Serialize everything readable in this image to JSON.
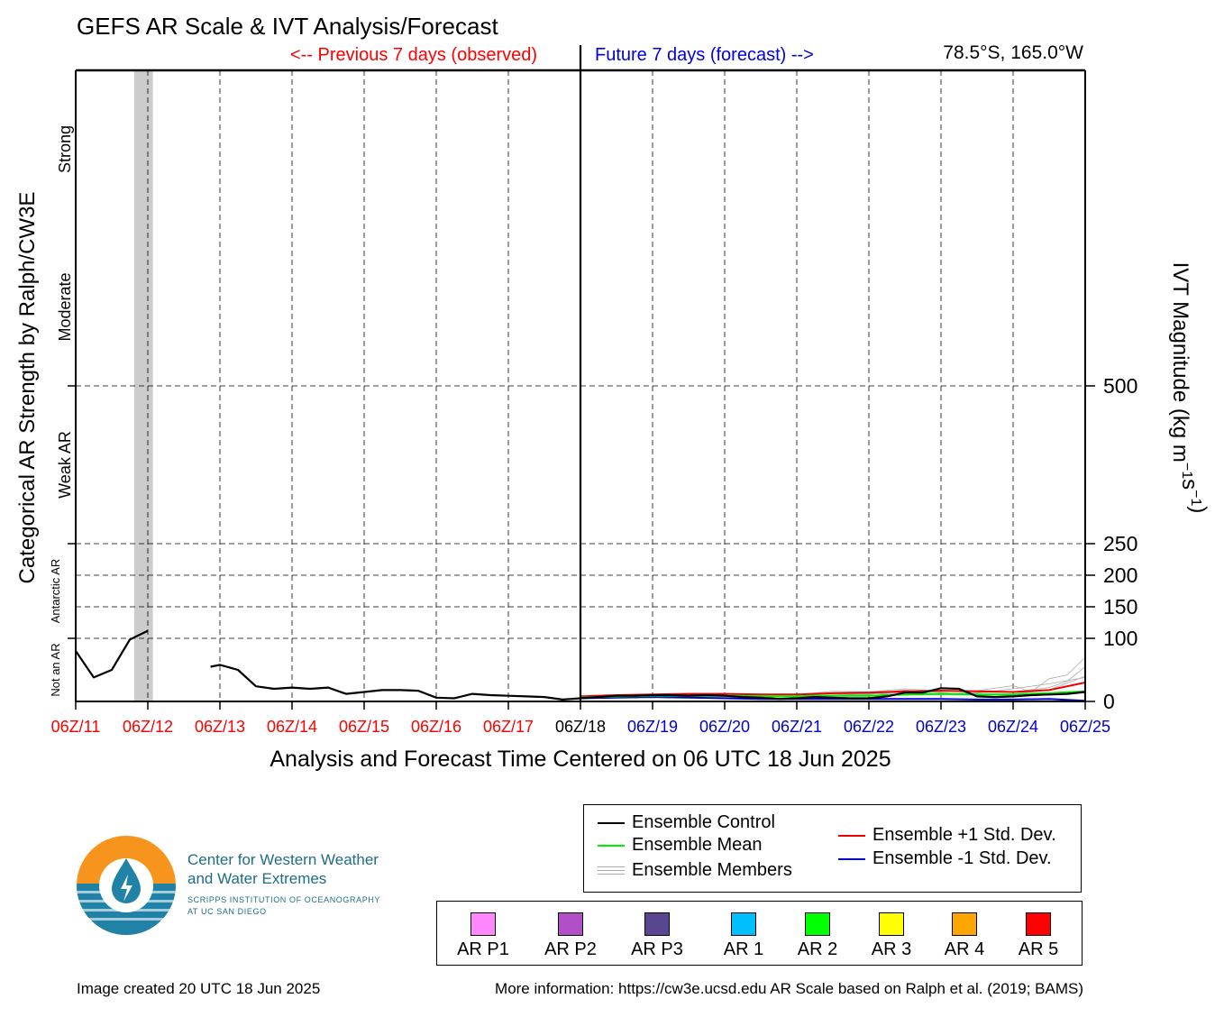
{
  "header": {
    "title": "GEFS AR Scale & IVT Analysis/Forecast",
    "previous_label": "<-- Previous 7 days (observed)",
    "future_label": "Future 7 days (forecast) -->",
    "coordinates": "78.5°S, 165.0°W"
  },
  "colors": {
    "observed": "#ff0000",
    "forecast": "#0000dd",
    "control": "#000000",
    "mean": "#00ee00",
    "plus_std": "#ee0000",
    "minus_std": "#0000cc",
    "members": "#aaaaaa",
    "missing_shade": "#cccccc"
  },
  "chart_data": {
    "type": "line",
    "title": "GEFS AR Scale & IVT Analysis/Forecast",
    "xlabel": "Analysis and Forecast Time Centered on 06 UTC 18 Jun 2025",
    "ylabel_left": "Categorical AR Strength by Ralph/CW3E",
    "ylabel_right_main": "IVT Magnitude (kg m",
    "ylabel_right_sup1": "−1",
    "ylabel_right_mid": "s",
    "ylabel_right_sup2": "−1",
    "ylabel_right_end": ")",
    "x_unit": "days since 06Z/11 Jun 2025",
    "xlim": [
      0,
      14
    ],
    "ylim": [
      0,
      1000
    ],
    "x_ticks": [
      {
        "label": "06Z/11",
        "period": "observed"
      },
      {
        "label": "06Z/12",
        "period": "observed"
      },
      {
        "label": "06Z/13",
        "period": "observed"
      },
      {
        "label": "06Z/14",
        "period": "observed"
      },
      {
        "label": "06Z/15",
        "period": "observed"
      },
      {
        "label": "06Z/16",
        "period": "observed"
      },
      {
        "label": "06Z/17",
        "period": "observed"
      },
      {
        "label": "06Z/18",
        "period": "current"
      },
      {
        "label": "06Z/19",
        "period": "forecast"
      },
      {
        "label": "06Z/20",
        "period": "forecast"
      },
      {
        "label": "06Z/21",
        "period": "forecast"
      },
      {
        "label": "06Z/22",
        "period": "forecast"
      },
      {
        "label": "06Z/23",
        "period": "forecast"
      },
      {
        "label": "06Z/24",
        "period": "forecast"
      },
      {
        "label": "06Z/25",
        "period": "forecast"
      }
    ],
    "y_ticks": [
      0,
      100,
      150,
      200,
      250,
      500
    ],
    "categories": [
      {
        "label": "Not an AR",
        "y_from": 0,
        "y_to": 100
      },
      {
        "label": "Antarctic AR",
        "y_from": 100,
        "y_to": 250
      },
      {
        "label": "Weak AR",
        "y_from": 250,
        "y_to": 500
      },
      {
        "label": "Moderate",
        "y_from": 500,
        "y_to": 750
      },
      {
        "label": "Strong",
        "y_from": 750,
        "y_to": 1000
      }
    ],
    "missing_data_period": [
      0.81,
      1.07
    ],
    "grid": true,
    "series": [
      {
        "name": "Ensemble Control",
        "role": "control",
        "segments": [
          [
            [
              0,
              80
            ],
            [
              0.25,
              38
            ],
            [
              0.5,
              50
            ],
            [
              0.75,
              98
            ],
            [
              1.0,
              112
            ]
          ],
          [
            [
              1.87,
              55
            ],
            [
              2.0,
              58
            ],
            [
              2.25,
              50
            ],
            [
              2.5,
              24
            ],
            [
              2.75,
              20
            ],
            [
              3.0,
              22
            ],
            [
              3.25,
              20
            ],
            [
              3.5,
              22
            ],
            [
              3.75,
              12
            ],
            [
              4.0,
              15
            ],
            [
              4.25,
              18
            ],
            [
              4.5,
              18
            ],
            [
              4.75,
              17
            ],
            [
              5.0,
              6
            ],
            [
              5.25,
              5
            ],
            [
              5.5,
              12
            ],
            [
              5.75,
              10
            ],
            [
              6.0,
              9
            ],
            [
              6.25,
              8
            ],
            [
              6.5,
              7
            ],
            [
              6.75,
              3
            ],
            [
              7.0,
              5
            ],
            [
              7.25,
              7
            ],
            [
              7.5,
              9
            ],
            [
              7.75,
              9
            ],
            [
              8.0,
              10
            ],
            [
              8.25,
              10
            ],
            [
              8.5,
              9
            ],
            [
              8.75,
              10
            ],
            [
              9.0,
              9
            ],
            [
              9.25,
              7
            ],
            [
              9.5,
              6
            ],
            [
              9.75,
              4
            ],
            [
              10.0,
              5
            ],
            [
              10.25,
              7
            ],
            [
              10.5,
              6
            ],
            [
              10.75,
              5
            ],
            [
              11.0,
              5
            ],
            [
              11.25,
              8
            ],
            [
              11.5,
              14
            ],
            [
              11.75,
              14
            ],
            [
              12.0,
              21
            ],
            [
              12.25,
              20
            ],
            [
              12.5,
              8
            ],
            [
              12.75,
              7
            ],
            [
              13.0,
              8
            ],
            [
              13.25,
              10
            ],
            [
              13.5,
              11
            ],
            [
              13.75,
              12
            ],
            [
              14.0,
              15
            ]
          ]
        ]
      },
      {
        "name": "Ensemble Mean",
        "role": "mean",
        "segments": [
          [
            [
              7.0,
              6
            ],
            [
              7.5,
              8
            ],
            [
              8.0,
              9
            ],
            [
              8.5,
              9
            ],
            [
              9.0,
              9
            ],
            [
              9.5,
              8
            ],
            [
              10.0,
              8
            ],
            [
              10.5,
              9
            ],
            [
              11.0,
              9
            ],
            [
              11.5,
              11
            ],
            [
              12.0,
              12
            ],
            [
              12.5,
              11
            ],
            [
              13.0,
              11
            ],
            [
              13.5,
              13
            ],
            [
              14.0,
              16
            ]
          ]
        ]
      },
      {
        "name": "Ensemble +1 Std. Dev.",
        "role": "plus_std",
        "segments": [
          [
            [
              7.0,
              8
            ],
            [
              7.5,
              10
            ],
            [
              8.0,
              11
            ],
            [
              8.5,
              12
            ],
            [
              9.0,
              12
            ],
            [
              9.5,
              11
            ],
            [
              10.0,
              11
            ],
            [
              10.5,
              13
            ],
            [
              11.0,
              14
            ],
            [
              11.5,
              16
            ],
            [
              12.0,
              17
            ],
            [
              12.5,
              16
            ],
            [
              13.0,
              15
            ],
            [
              13.5,
              18
            ],
            [
              14.0,
              30
            ]
          ]
        ]
      },
      {
        "name": "Ensemble -1 Std. Dev.",
        "role": "minus_std",
        "segments": [
          [
            [
              7.0,
              5
            ],
            [
              7.5,
              6
            ],
            [
              8.0,
              7
            ],
            [
              8.5,
              6
            ],
            [
              9.0,
              5
            ],
            [
              9.5,
              4
            ],
            [
              10.0,
              4
            ],
            [
              10.5,
              4
            ],
            [
              11.0,
              4
            ],
            [
              11.5,
              4
            ],
            [
              12.0,
              4
            ],
            [
              12.5,
              3
            ],
            [
              13.0,
              3
            ],
            [
              13.5,
              4
            ],
            [
              14.0,
              1
            ]
          ]
        ]
      },
      {
        "name": "Ensemble Members",
        "role": "members",
        "segments": [
          [
            [
              7.0,
              7
            ],
            [
              8.0,
              11
            ],
            [
              9.0,
              12
            ],
            [
              10.0,
              11
            ],
            [
              10.5,
              16
            ],
            [
              11.0,
              15
            ],
            [
              11.5,
              20
            ],
            [
              12.0,
              16
            ],
            [
              12.5,
              17
            ],
            [
              13.0,
              25
            ],
            [
              13.25,
              15
            ],
            [
              13.5,
              36
            ],
            [
              13.75,
              42
            ],
            [
              14.0,
              70
            ]
          ],
          [
            [
              7.0,
              6
            ],
            [
              8.0,
              9
            ],
            [
              9.0,
              8
            ],
            [
              10.0,
              8
            ],
            [
              10.5,
              10
            ],
            [
              11.0,
              12
            ],
            [
              11.5,
              14
            ],
            [
              12.0,
              12
            ],
            [
              12.5,
              14
            ],
            [
              13.0,
              15
            ],
            [
              13.5,
              22
            ],
            [
              13.75,
              32
            ],
            [
              14.0,
              55
            ]
          ],
          [
            [
              7.0,
              5
            ],
            [
              8.0,
              8
            ],
            [
              9.0,
              7
            ],
            [
              10.0,
              9
            ],
            [
              10.5,
              12
            ],
            [
              11.0,
              11
            ],
            [
              11.5,
              18
            ],
            [
              12.0,
              14
            ],
            [
              12.5,
              10
            ],
            [
              13.0,
              12
            ],
            [
              13.5,
              18
            ],
            [
              14.0,
              40
            ]
          ],
          [
            [
              7.0,
              8
            ],
            [
              8.0,
              10
            ],
            [
              9.0,
              10
            ],
            [
              10.0,
              7
            ],
            [
              10.5,
              8
            ],
            [
              11.0,
              13
            ],
            [
              11.5,
              10
            ],
            [
              12.0,
              18
            ],
            [
              12.5,
              13
            ],
            [
              13.0,
              20
            ],
            [
              13.5,
              28
            ],
            [
              14.0,
              38
            ]
          ]
        ]
      }
    ]
  },
  "legend": {
    "items": [
      {
        "label": "Ensemble Control",
        "role": "control"
      },
      {
        "label": "Ensemble Mean",
        "role": "mean"
      },
      {
        "label": "Ensemble Members",
        "role": "members"
      },
      {
        "label": "Ensemble +1 Std. Dev.",
        "role": "plus_std"
      },
      {
        "label": "Ensemble -1 Std. Dev.",
        "role": "minus_std"
      }
    ]
  },
  "ar_scale": [
    {
      "label": "AR P1",
      "color": "#ff88ff"
    },
    {
      "label": "AR P2",
      "color": "#b14fc9"
    },
    {
      "label": "AR P3",
      "color": "#5a4690"
    },
    {
      "label": "AR 1",
      "color": "#00bfff"
    },
    {
      "label": "AR 2",
      "color": "#00ff00"
    },
    {
      "label": "AR 3",
      "color": "#ffff00"
    },
    {
      "label": "AR 4",
      "color": "#ffa500"
    },
    {
      "label": "AR 5",
      "color": "#ff0000"
    }
  ],
  "logo": {
    "name_line1": "Center for Western Weather",
    "name_line2": "and Water Extremes",
    "sub_line1": "SCRIPPS INSTITUTION OF OCEANOGRAPHY",
    "sub_line2": "AT UC SAN DIEGO",
    "orange": "#f7941d",
    "blue": "#1f82a6"
  },
  "footer": {
    "created": "Image created 20 UTC 18 Jun 2025",
    "info": "More information: https://cw3e.ucsd.edu AR Scale based on Ralph et al. (2019; BAMS)"
  }
}
